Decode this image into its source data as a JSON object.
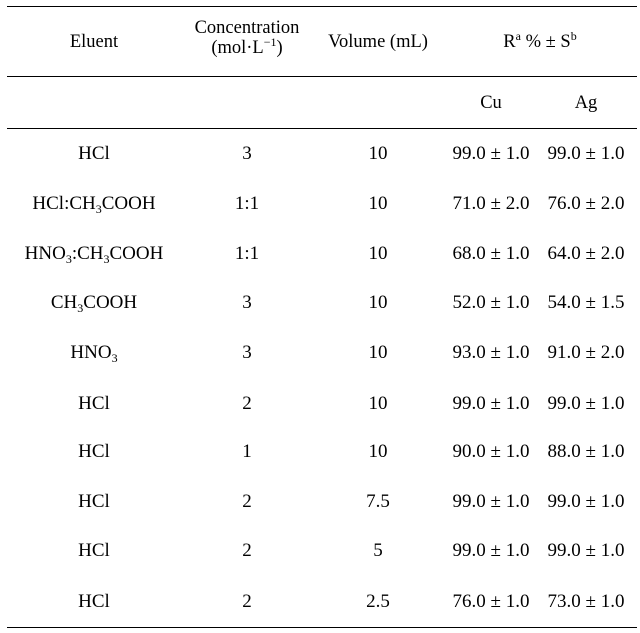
{
  "header": {
    "eluent": "Eluent",
    "concentration_line1": "Concentration",
    "concentration_line2_pre": "(mol·L",
    "concentration_exp": "−1",
    "concentration_line2_post": ")",
    "volume": "Volume (mL)",
    "recovery_r": "R",
    "recovery_r_sup": "a",
    "recovery_mid": " % ± S",
    "recovery_s_sup": "b",
    "cu": "Cu",
    "ag": "Ag"
  },
  "rows": [
    {
      "eluent": [
        {
          "t": "HCl"
        }
      ],
      "concentration": "3",
      "volume": "10",
      "cu": "99.0 ± 1.0",
      "ag": "99.0 ± 1.0"
    },
    {
      "eluent": [
        {
          "t": "HCl:CH"
        },
        {
          "s": "3"
        },
        {
          "t": "COOH"
        }
      ],
      "concentration": "1:1",
      "volume": "10",
      "cu": "71.0 ± 2.0",
      "ag": "76.0 ± 2.0"
    },
    {
      "eluent": [
        {
          "t": "HNO"
        },
        {
          "s": "3"
        },
        {
          "t": ":CH"
        },
        {
          "s": "3"
        },
        {
          "t": "COOH"
        }
      ],
      "concentration": "1:1",
      "volume": "10",
      "cu": "68.0 ± 1.0",
      "ag": "64.0 ± 2.0"
    },
    {
      "eluent": [
        {
          "t": "CH"
        },
        {
          "s": "3"
        },
        {
          "t": "COOH"
        }
      ],
      "concentration": "3",
      "volume": "10",
      "cu": "52.0 ± 1.0",
      "ag": "54.0 ± 1.5"
    },
    {
      "eluent": [
        {
          "t": "HNO"
        },
        {
          "s": "3"
        }
      ],
      "concentration": "3",
      "volume": "10",
      "cu": "93.0 ± 1.0",
      "ag": "91.0 ± 2.0"
    },
    {
      "eluent": [
        {
          "t": "HCl"
        }
      ],
      "concentration": "2",
      "volume": "10",
      "cu": "99.0 ± 1.0",
      "ag": "99.0 ± 1.0"
    },
    {
      "eluent": [
        {
          "t": "HCl"
        }
      ],
      "concentration": "1",
      "volume": "10",
      "cu": "90.0 ± 1.0",
      "ag": "88.0 ± 1.0"
    },
    {
      "eluent": [
        {
          "t": "HCl"
        }
      ],
      "concentration": "2",
      "volume": "7.5",
      "cu": "99.0 ± 1.0",
      "ag": "99.0 ± 1.0"
    },
    {
      "eluent": [
        {
          "t": "HCl"
        }
      ],
      "concentration": "2",
      "volume": "5",
      "cu": "99.0 ± 1.0",
      "ag": "99.0 ± 1.0"
    },
    {
      "eluent": [
        {
          "t": "HCl"
        }
      ],
      "concentration": "2",
      "volume": "2.5",
      "cu": "76.0 ± 1.0",
      "ag": "73.0 ± 1.0"
    }
  ]
}
